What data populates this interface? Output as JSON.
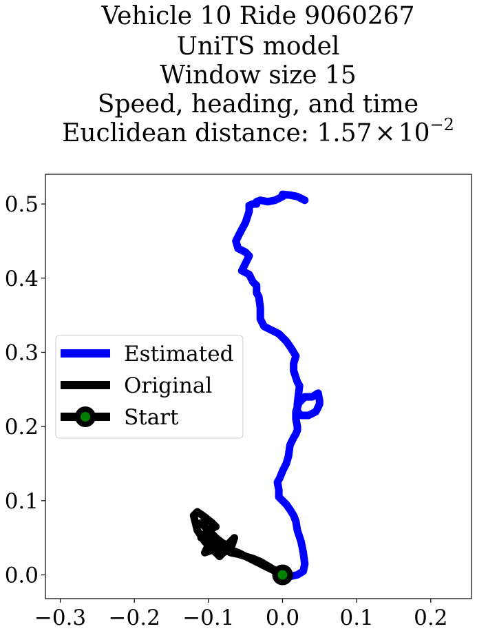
{
  "chart_data": {
    "type": "line",
    "title_lines": [
      "Vehicle 10 Ride 9060267",
      "UniTS model",
      "Window size 15",
      "Speed, heading, and time"
    ],
    "title_distance": {
      "prefix": "Euclidean distance: ",
      "mantissa": "1.57",
      "times": "×",
      "base": "10",
      "exponent": "−2"
    },
    "xlabel": "",
    "ylabel": "",
    "xlim": [
      -0.32,
      0.255
    ],
    "ylim": [
      -0.032,
      0.54
    ],
    "xticks": [
      -0.3,
      -0.2,
      -0.1,
      0.0,
      0.1,
      0.2
    ],
    "xtick_labels": [
      "−0.3",
      "−0.2",
      "−0.1",
      "0.0",
      "0.1",
      "0.2"
    ],
    "yticks": [
      0.0,
      0.1,
      0.2,
      0.3,
      0.4,
      0.5
    ],
    "ytick_labels": [
      "0.0",
      "0.1",
      "0.2",
      "0.3",
      "0.4",
      "0.5"
    ],
    "grid": false,
    "legend_position": "center-left",
    "series": [
      {
        "name": "Estimated",
        "color": "#0000ff",
        "x": [
          0.0,
          0.01,
          0.02,
          0.028,
          0.03,
          0.028,
          0.025,
          0.02,
          0.018,
          0.015,
          0.01,
          0.005,
          0.0,
          -0.005,
          -0.005,
          -0.007,
          -0.004,
          0.0,
          0.005,
          0.008,
          0.01,
          0.015,
          0.018,
          0.02,
          0.02,
          0.018,
          0.018,
          0.022,
          0.03,
          0.04,
          0.048,
          0.05,
          0.05,
          0.045,
          0.035,
          0.025,
          0.02,
          0.02,
          0.023,
          0.02,
          0.015,
          0.015,
          0.018,
          0.012,
          0.005,
          -0.005,
          -0.015,
          -0.025,
          -0.03,
          -0.03,
          -0.032,
          -0.035,
          -0.035,
          -0.04,
          -0.045,
          -0.055,
          -0.05,
          -0.045,
          -0.05,
          -0.06,
          -0.063,
          -0.058,
          -0.05,
          -0.045,
          -0.045,
          -0.04,
          -0.035,
          -0.035,
          -0.03,
          -0.02,
          -0.01,
          0.0,
          0.0,
          0.01,
          0.02,
          0.03
        ],
        "y": [
          0.0,
          -0.002,
          0.0,
          0.005,
          0.015,
          0.03,
          0.045,
          0.06,
          0.072,
          0.08,
          0.088,
          0.095,
          0.1,
          0.105,
          0.115,
          0.125,
          0.13,
          0.14,
          0.15,
          0.16,
          0.175,
          0.185,
          0.19,
          0.195,
          0.2,
          0.21,
          0.22,
          0.232,
          0.24,
          0.24,
          0.245,
          0.235,
          0.23,
          0.22,
          0.215,
          0.215,
          0.22,
          0.23,
          0.255,
          0.26,
          0.275,
          0.285,
          0.295,
          0.305,
          0.315,
          0.325,
          0.33,
          0.335,
          0.345,
          0.36,
          0.375,
          0.38,
          0.39,
          0.395,
          0.405,
          0.41,
          0.42,
          0.43,
          0.435,
          0.44,
          0.45,
          0.46,
          0.475,
          0.49,
          0.498,
          0.5,
          0.5,
          0.503,
          0.505,
          0.503,
          0.505,
          0.51,
          0.513,
          0.512,
          0.51,
          0.505
        ]
      },
      {
        "name": "Original",
        "color": "#000000",
        "x": [
          0.0,
          -0.02,
          -0.04,
          -0.06,
          -0.08,
          -0.09,
          -0.1,
          -0.105,
          -0.11,
          -0.1,
          -0.09,
          -0.095,
          -0.105,
          -0.115,
          -0.12,
          -0.115,
          -0.105,
          -0.1,
          -0.105,
          -0.09,
          -0.08,
          -0.09,
          -0.1,
          -0.11,
          -0.105,
          -0.095,
          -0.085,
          -0.075,
          -0.065,
          -0.07,
          -0.08,
          -0.085,
          -0.09,
          -0.095,
          -0.1,
          -0.09,
          -0.08,
          -0.07,
          -0.06,
          -0.05,
          -0.04,
          -0.03,
          -0.02,
          -0.01,
          0.0
        ],
        "y": [
          0.0,
          0.01,
          0.02,
          0.03,
          0.037,
          0.045,
          0.05,
          0.048,
          0.05,
          0.06,
          0.065,
          0.07,
          0.078,
          0.085,
          0.08,
          0.06,
          0.045,
          0.04,
          0.03,
          0.035,
          0.042,
          0.05,
          0.06,
          0.07,
          0.065,
          0.055,
          0.045,
          0.04,
          0.05,
          0.035,
          0.03,
          0.025,
          0.03,
          0.035,
          0.04,
          0.038,
          0.035,
          0.03,
          0.028,
          0.025,
          0.022,
          0.018,
          0.012,
          0.006,
          0.0
        ]
      }
    ],
    "start_point": {
      "name": "Start",
      "x": 0.0,
      "y": 0.0,
      "line_color": "#000000",
      "marker_face": "#008000",
      "marker_edge": "#000000"
    }
  }
}
